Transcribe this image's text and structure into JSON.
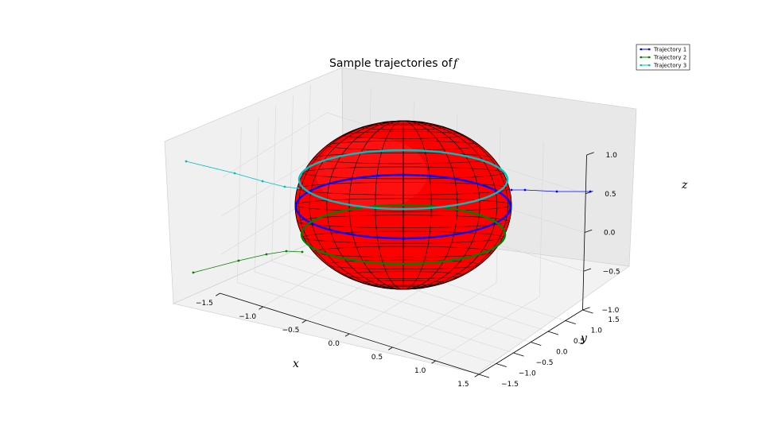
{
  "chart_data": {
    "type": "line",
    "subtype": "3d",
    "title": "Sample trajectories of",
    "title_symbol": "f",
    "xlabel": "x",
    "ylabel": "y",
    "zlabel": "z",
    "xlim": [
      -1.5,
      1.5
    ],
    "ylim": [
      -1.5,
      1.5
    ],
    "zlim": [
      -1.0,
      1.0
    ],
    "xticks": [
      "−1.5",
      "−1.0",
      "−0.5",
      "0.0",
      "0.5",
      "1.0",
      "1.5"
    ],
    "yticks": [
      "−1.5",
      "−1.0",
      "−0.5",
      "0.0",
      "0.5",
      "1.0",
      "1.5"
    ],
    "zticks": [
      "−1.0",
      "−0.5",
      "0.0",
      "0.5",
      "1.0"
    ],
    "grid": true,
    "legend_position": "top-right",
    "surface": {
      "shape": "ellipsoid",
      "color": "#ff0000",
      "edge_color": "#000000"
    },
    "series": [
      {
        "name": "Trajectory 1",
        "color": "#0000ff",
        "tail": [
          [
            -1.5,
            -1.5,
            0.0
          ],
          [
            -1.3,
            -1.3,
            0.0
          ],
          [
            -1.1,
            -1.1,
            0.0
          ],
          [
            -0.9,
            -0.9,
            0.02
          ],
          [
            -0.72,
            -0.72,
            0.05
          ]
        ],
        "orbit_z": -0.05
      },
      {
        "name": "Trajectory 2",
        "color": "#008000",
        "tail": [
          [
            -1.5,
            0.0,
            -0.8
          ],
          [
            -1.3,
            0.0,
            -0.7
          ],
          [
            -1.1,
            0.0,
            -0.55
          ],
          [
            -0.95,
            0.0,
            -0.42
          ],
          [
            -0.8,
            0.0,
            -0.35
          ]
        ],
        "orbit_z": -0.35
      },
      {
        "name": "Trajectory 3",
        "color": "#00bfbf",
        "tail": [
          [
            -1.5,
            0.0,
            0.6
          ],
          [
            -1.3,
            0.0,
            0.5
          ],
          [
            -1.1,
            0.0,
            0.38
          ],
          [
            -0.95,
            0.0,
            0.3
          ],
          [
            -0.8,
            0.0,
            0.28
          ]
        ],
        "orbit_z": 0.3
      }
    ]
  }
}
